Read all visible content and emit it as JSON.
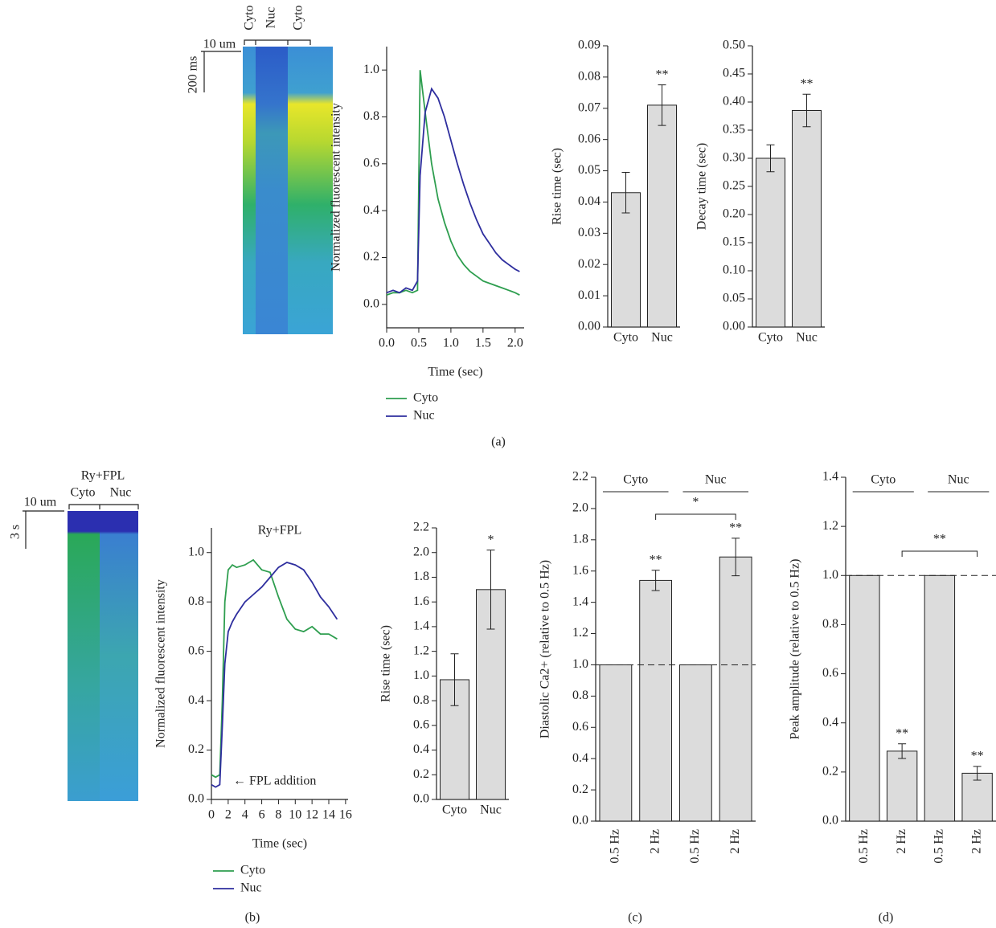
{
  "panel_labels": [
    "(a)",
    "(b)",
    "(c)",
    "(d)"
  ],
  "kymographs": [
    {
      "labels": [
        "Cyto",
        "Nuc",
        "Cyto"
      ],
      "scale_x": "10 um",
      "scale_y": "200 ms"
    },
    {
      "title": "Ry+FPL",
      "labels": [
        "Cyto",
        "Nuc"
      ],
      "scale_x": "10 um",
      "scale_y": "3 s"
    }
  ],
  "chart_data": [
    {
      "type": "line",
      "x_label": "Time (sec)",
      "y_label": "Normalized fluorescent intensity",
      "x": [
        0,
        0.1,
        0.2,
        0.3,
        0.4,
        0.48,
        0.52,
        0.6,
        0.7,
        0.8,
        0.9,
        1.0,
        1.1,
        1.2,
        1.3,
        1.4,
        1.5,
        1.6,
        1.7,
        1.8,
        1.9,
        2.0,
        2.07
      ],
      "series": [
        {
          "name": "Cyto",
          "color": "#2e9e4f",
          "values": [
            0.04,
            0.05,
            0.05,
            0.06,
            0.05,
            0.06,
            1.0,
            0.82,
            0.6,
            0.45,
            0.35,
            0.27,
            0.21,
            0.17,
            0.14,
            0.12,
            0.1,
            0.09,
            0.08,
            0.07,
            0.06,
            0.05,
            0.04
          ]
        },
        {
          "name": "Nuc",
          "color": "#2e2e9e",
          "values": [
            0.05,
            0.06,
            0.05,
            0.07,
            0.06,
            0.1,
            0.55,
            0.82,
            0.92,
            0.88,
            0.8,
            0.7,
            0.6,
            0.51,
            0.43,
            0.36,
            0.3,
            0.26,
            0.22,
            0.19,
            0.17,
            0.15,
            0.14
          ]
        }
      ],
      "xlim": [
        0,
        2.14
      ],
      "ylim": [
        -0.1,
        1.1
      ],
      "xticks": [
        {
          "value": 0,
          "label": "0.0"
        },
        0.5,
        {
          "value": 1,
          "label": "1.0"
        },
        1.5,
        {
          "value": 2,
          "label": "2.0"
        }
      ],
      "yticks": [
        {
          "value": 0,
          "label": "0.0"
        },
        0.2,
        0.4,
        0.6,
        0.8,
        {
          "value": 1,
          "label": "1.0"
        }
      ]
    },
    {
      "type": "bar",
      "y_label": "Rise time (sec)",
      "categories": [
        "Cyto",
        "Nuc"
      ],
      "values": [
        0.043,
        0.071
      ],
      "errors": [
        0.0065,
        0.0065
      ],
      "significance": [
        null,
        "**"
      ],
      "color": "#dcdcdc",
      "ylim": [
        0,
        0.09
      ],
      "yticks": [
        {
          "value": 0,
          "label": "0.00"
        },
        0.01,
        0.02,
        0.03,
        0.04,
        0.05,
        0.06,
        0.07,
        0.08,
        0.09
      ]
    },
    {
      "type": "bar",
      "y_label": "Decay time (sec)",
      "categories": [
        "Cyto",
        "Nuc"
      ],
      "values": [
        0.3,
        0.385
      ],
      "errors": [
        0.024,
        0.029
      ],
      "significance": [
        null,
        "**"
      ],
      "color": "#dcdcdc",
      "ylim": [
        0,
        0.5
      ],
      "yticks": [
        {
          "value": 0,
          "label": "0.00"
        },
        0.05,
        {
          "value": 0.1,
          "label": "0.10"
        },
        0.15,
        {
          "value": 0.2,
          "label": "0.20"
        },
        0.25,
        {
          "value": 0.3,
          "label": "0.30"
        },
        0.35,
        {
          "value": 0.4,
          "label": "0.40"
        },
        0.45,
        {
          "value": 0.5,
          "label": "0.50"
        }
      ]
    },
    {
      "type": "line",
      "title": "Ry+FPL",
      "annotation": "← FPL addition",
      "x_label": "Time (sec)",
      "y_label": "Normalized fluorescent intensity",
      "x": [
        0,
        0.5,
        1,
        1.3,
        1.6,
        2,
        2.5,
        3,
        4,
        5,
        6,
        7,
        8,
        9,
        10,
        11,
        12,
        13,
        14,
        15
      ],
      "series": [
        {
          "name": "Cyto",
          "color": "#2e9e4f",
          "values": [
            0.1,
            0.09,
            0.1,
            0.4,
            0.8,
            0.93,
            0.95,
            0.94,
            0.95,
            0.97,
            0.93,
            0.92,
            0.82,
            0.73,
            0.69,
            0.68,
            0.7,
            0.67,
            0.67,
            0.65
          ]
        },
        {
          "name": "Nuc",
          "color": "#2e2e9e",
          "values": [
            0.06,
            0.05,
            0.06,
            0.3,
            0.55,
            0.68,
            0.72,
            0.75,
            0.8,
            0.83,
            0.86,
            0.9,
            0.94,
            0.96,
            0.95,
            0.93,
            0.88,
            0.82,
            0.78,
            0.73
          ]
        }
      ],
      "xlim": [
        0,
        16.3
      ],
      "ylim": [
        0,
        1.1
      ],
      "xticks": [
        0,
        2,
        4,
        6,
        8,
        10,
        12,
        14,
        16
      ],
      "yticks": [
        {
          "value": 0,
          "label": "0.0"
        },
        0.2,
        0.4,
        0.6,
        0.8,
        {
          "value": 1,
          "label": "1.0"
        }
      ]
    },
    {
      "type": "bar",
      "y_label": "Rise time (sec)",
      "categories": [
        "Cyto",
        "Nuc"
      ],
      "values": [
        0.97,
        1.7
      ],
      "errors": [
        0.21,
        0.32
      ],
      "significance": [
        null,
        "*"
      ],
      "color": "#dcdcdc",
      "ylim": [
        0,
        2.2
      ],
      "yticks": [
        {
          "value": 0,
          "label": "0.0"
        },
        0.2,
        0.4,
        0.6,
        0.8,
        {
          "value": 1,
          "label": "1.0"
        },
        1.2,
        1.4,
        1.6,
        1.8,
        {
          "value": 2,
          "label": "2.0"
        },
        2.2
      ]
    },
    {
      "type": "bar",
      "y_label": "Diastolic Ca2+ (relative to 0.5 Hz)",
      "categories": [
        "0.5 Hz",
        "2 Hz",
        "0.5 Hz",
        "2 Hz"
      ],
      "values": [
        1,
        1.54,
        1,
        1.69
      ],
      "errors": [
        null,
        0.065,
        null,
        0.12
      ],
      "significance": [
        null,
        "**",
        null,
        "**"
      ],
      "groups": [
        "Cyto",
        "Nuc"
      ],
      "bracket_label": "*",
      "reference_line": 1,
      "color": "#dcdcdc",
      "ylim": [
        0,
        2.2
      ],
      "yticks": [
        {
          "value": 0,
          "label": "0.0"
        },
        0.2,
        0.4,
        0.6,
        0.8,
        {
          "value": 1,
          "label": "1.0"
        },
        1.2,
        1.4,
        1.6,
        1.8,
        {
          "value": 2,
          "label": "2.0"
        },
        2.2
      ]
    },
    {
      "type": "bar",
      "y_label": "Peak amplitude (relative to 0.5 Hz)",
      "categories": [
        "0.5 Hz",
        "2 Hz",
        "0.5 Hz",
        "2 Hz"
      ],
      "values": [
        1,
        0.285,
        1,
        0.195
      ],
      "errors": [
        null,
        0.03,
        null,
        0.028
      ],
      "significance": [
        null,
        "**",
        null,
        "**"
      ],
      "groups": [
        "Cyto",
        "Nuc"
      ],
      "bracket_label": "**",
      "reference_line": 1,
      "color": "#dcdcdc",
      "ylim": [
        0,
        1.4
      ],
      "yticks": [
        {
          "value": 0,
          "label": "0.0"
        },
        0.2,
        0.4,
        0.6,
        0.8,
        {
          "value": 1,
          "label": "1.0"
        },
        1.2,
        1.4
      ]
    }
  ]
}
